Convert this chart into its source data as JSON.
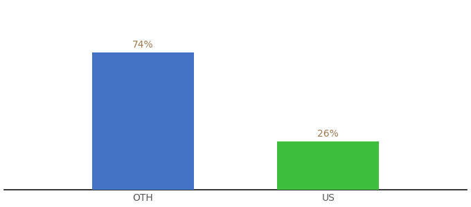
{
  "categories": [
    "OTH",
    "US"
  ],
  "values": [
    74,
    26
  ],
  "bar_colors": [
    "#4472c4",
    "#3dbf3d"
  ],
  "label_color": "#a07850",
  "label_fontsize": 10,
  "xlabel_fontsize": 10,
  "background_color": "#ffffff",
  "ylim": [
    0,
    100
  ],
  "bar_positions": [
    0.3,
    0.7
  ],
  "bar_width": 0.22,
  "xlim": [
    0,
    1
  ]
}
